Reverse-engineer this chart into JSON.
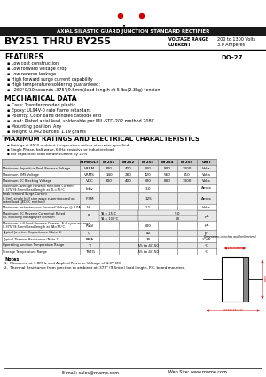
{
  "title_top": "AXIAL SILASTIC GUARD JUNCTION STANDARD RECTIFIER",
  "part_number": "BY251 THRU BY255",
  "voltage_range_label": "VOLTAGE RANGE",
  "voltage_range_value": "200 to 1300 Volts",
  "current_label": "CURRENT",
  "current_value": "3.0 Amperes",
  "package": "DO-27",
  "features_title": "FEATURES",
  "features": [
    "Low cost construction",
    "Low forward voltage drop",
    "Low reverse leakage",
    "High forward surge current capability",
    "High temperature soldering guaranteed:",
    "  260°C/10 seconds .375\"(9.5mm)lead length at 5 lbs(2.3kg) tension"
  ],
  "mech_title": "MECHANICAL DATA",
  "mech": [
    "Case: Transfer molded plastic",
    "Epoxy: UL94V-0 rate flame retardant",
    "Polarity: Color band denotes cathode end",
    "Lead: Plated axial lead, solderable per MIL-STD-202 method 208C",
    "Mounting position: Any",
    "Weight: 0.042 ounces, 1.19 grams"
  ],
  "ratings_title": "MAXIMUM RATINGS AND ELECTRICAL CHARACTERISTICS",
  "ratings_bullets": [
    "Ratings at 25°C ambient temperature unless otherwise specified",
    "Single Phase, half wave, 60Hz, resistive or inductive load",
    "For capacitive load derate current by 20%"
  ],
  "table_col_headers": [
    "",
    "SYMBOLS",
    "BY251",
    "BY252",
    "BY253",
    "BY254",
    "BY255",
    "UNIT"
  ],
  "table_rows": [
    {
      "desc": "Maximum Repetitive Peak Reverse Voltage",
      "sym": "VRRM",
      "vals": [
        "200",
        "400",
        "600",
        "800",
        "1300"
      ],
      "unit": "Volts"
    },
    {
      "desc": "Maximum RMS Voltage",
      "sym": "VRMS",
      "vals": [
        "140",
        "280",
        "420",
        "560",
        "910"
      ],
      "unit": "Volts"
    },
    {
      "desc": "Maximum DC Blocking Voltage",
      "sym": "VDC",
      "vals": [
        "200",
        "400",
        "600",
        "800",
        "1300"
      ],
      "unit": "Volts"
    },
    {
      "desc": "Maximum Average Forward Rectified Current\n0.375\"(9.5mm) lead length at TL=75°C",
      "sym": "IoAv",
      "vals": [
        "",
        "",
        "3.0",
        "",
        ""
      ],
      "unit": "Amps"
    },
    {
      "desc": "Peak Forward Surge Current\n8.3mS single half sine wave superimposed on\nrated load (JEDEC method)",
      "sym": "IFSM",
      "vals": [
        "",
        "",
        "125",
        "",
        ""
      ],
      "unit": "Amps"
    },
    {
      "desc": "Maximum Instantaneous Forward Voltage @ 3.0A",
      "sym": "VF",
      "vals": [
        "",
        "",
        "1.1",
        "",
        ""
      ],
      "unit": "Volts"
    },
    {
      "desc": "Maximum DC Reverse Current at Rated\nDC Blocking Voltage per element",
      "sym2": [
        "TA = 25°C",
        "TA = 100°C"
      ],
      "sym": "IR",
      "vals2": [
        "5.0",
        "50"
      ],
      "vals": [
        "",
        "",
        "",
        "",
        ""
      ],
      "unit": "μA",
      "two_row": true
    },
    {
      "desc": "Maximum Full Load Reverse Current, Full cycle average\n0.375\"(9.5mm) lead length at TA=75°C",
      "sym": "IRAV",
      "vals": [
        "",
        "",
        "500",
        "",
        ""
      ],
      "unit": "μA"
    },
    {
      "desc": "Typical Junction Capacitance (Note 1)",
      "sym": "CJ",
      "vals": [
        "",
        "",
        "40",
        "",
        ""
      ],
      "unit": "pF"
    },
    {
      "desc": "Typical Thermal Resistance (Note 2)",
      "sym": "RθJA",
      "vals": [
        "",
        "",
        "30",
        "",
        ""
      ],
      "unit": "°C/W"
    },
    {
      "desc": "Operating Junction Temperature Range",
      "sym": "TJ",
      "vals": [
        "",
        "",
        "-55 to 4/150",
        "",
        ""
      ],
      "unit": "°C"
    },
    {
      "desc": "Storage Temperature Range",
      "sym": "TSTG",
      "vals": [
        "",
        "",
        "-55 to 4/150",
        "",
        ""
      ],
      "unit": "°C"
    }
  ],
  "notes_title": "Notes",
  "notes": [
    "1.  Measured at 1.0MHz and Applied Reverse Voltage of 4.0V DC.",
    "2.  Thermal Resistance from junction to ambient at .375\" (9.5mm) lead length, P.C. board mounted."
  ],
  "email": "E-mail: sales@rname.com",
  "website": "Web Site: www.rname.com",
  "bg_color": "#ffffff",
  "red_color": "#cc0000",
  "black": "#000000",
  "gray_header": "#c8c8c8",
  "gray_row": "#e8e8e8"
}
